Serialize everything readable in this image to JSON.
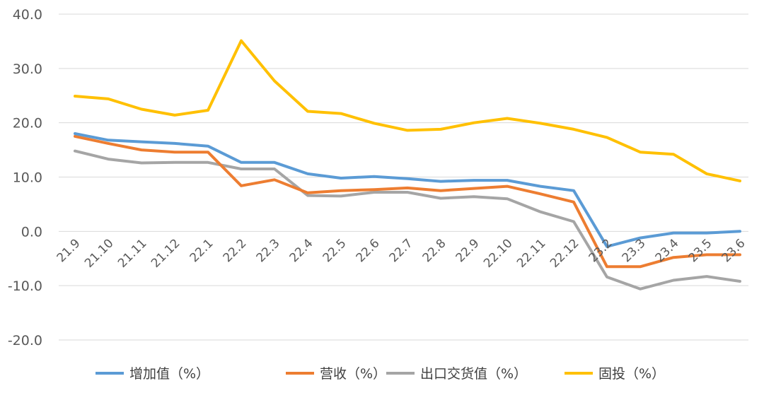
{
  "chart_data": {
    "type": "line",
    "categories": [
      "21.9",
      "21.10",
      "21.11",
      "21.12",
      "22.1",
      "22.2",
      "22.3",
      "22.4",
      "22.5",
      "22.6",
      "22.7",
      "22.8",
      "22.9",
      "22.10",
      "22.11",
      "22.12",
      "23.2",
      "23.3",
      "23.4",
      "23.5",
      "23.6"
    ],
    "series": [
      {
        "name": "增加值（%）",
        "color": "#5b9bd5",
        "values": [
          18.0,
          16.8,
          16.5,
          16.2,
          15.7,
          12.7,
          12.7,
          10.6,
          9.8,
          10.1,
          9.7,
          9.2,
          9.4,
          9.4,
          8.3,
          7.5,
          -2.8,
          -1.2,
          -0.3,
          -0.3,
          0.0
        ]
      },
      {
        "name": "营收（%）",
        "color": "#ed7d31",
        "values": [
          17.5,
          16.2,
          15.0,
          14.6,
          14.6,
          8.4,
          9.5,
          7.1,
          7.5,
          7.7,
          8.0,
          7.5,
          7.9,
          8.3,
          6.9,
          5.4,
          -6.5,
          -6.5,
          -4.8,
          -4.3,
          -4.3
        ]
      },
      {
        "name": "出口交货值（%）",
        "color": "#a5a5a5",
        "values": [
          14.8,
          13.3,
          12.6,
          12.7,
          12.7,
          11.5,
          11.5,
          6.6,
          6.5,
          7.2,
          7.2,
          6.1,
          6.4,
          6.0,
          3.6,
          1.8,
          -8.4,
          -10.6,
          -9.0,
          -8.3,
          -9.2
        ]
      },
      {
        "name": "固投（%）",
        "color": "#ffc000",
        "values": [
          24.9,
          24.4,
          22.5,
          21.4,
          22.3,
          35.1,
          27.7,
          22.1,
          21.7,
          19.9,
          18.6,
          18.8,
          20.0,
          20.8,
          19.9,
          18.8,
          17.3,
          14.6,
          14.2,
          10.6,
          9.3
        ]
      }
    ],
    "yticks": [
      "40.0",
      "30.0",
      "20.0",
      "10.0",
      "0.0",
      "-10.0",
      "-20.0"
    ],
    "ylim": [
      -20,
      40
    ],
    "ystep": 10,
    "title": "",
    "xlabel": "",
    "ylabel": "",
    "grid": true,
    "legend_position": "bottom"
  }
}
